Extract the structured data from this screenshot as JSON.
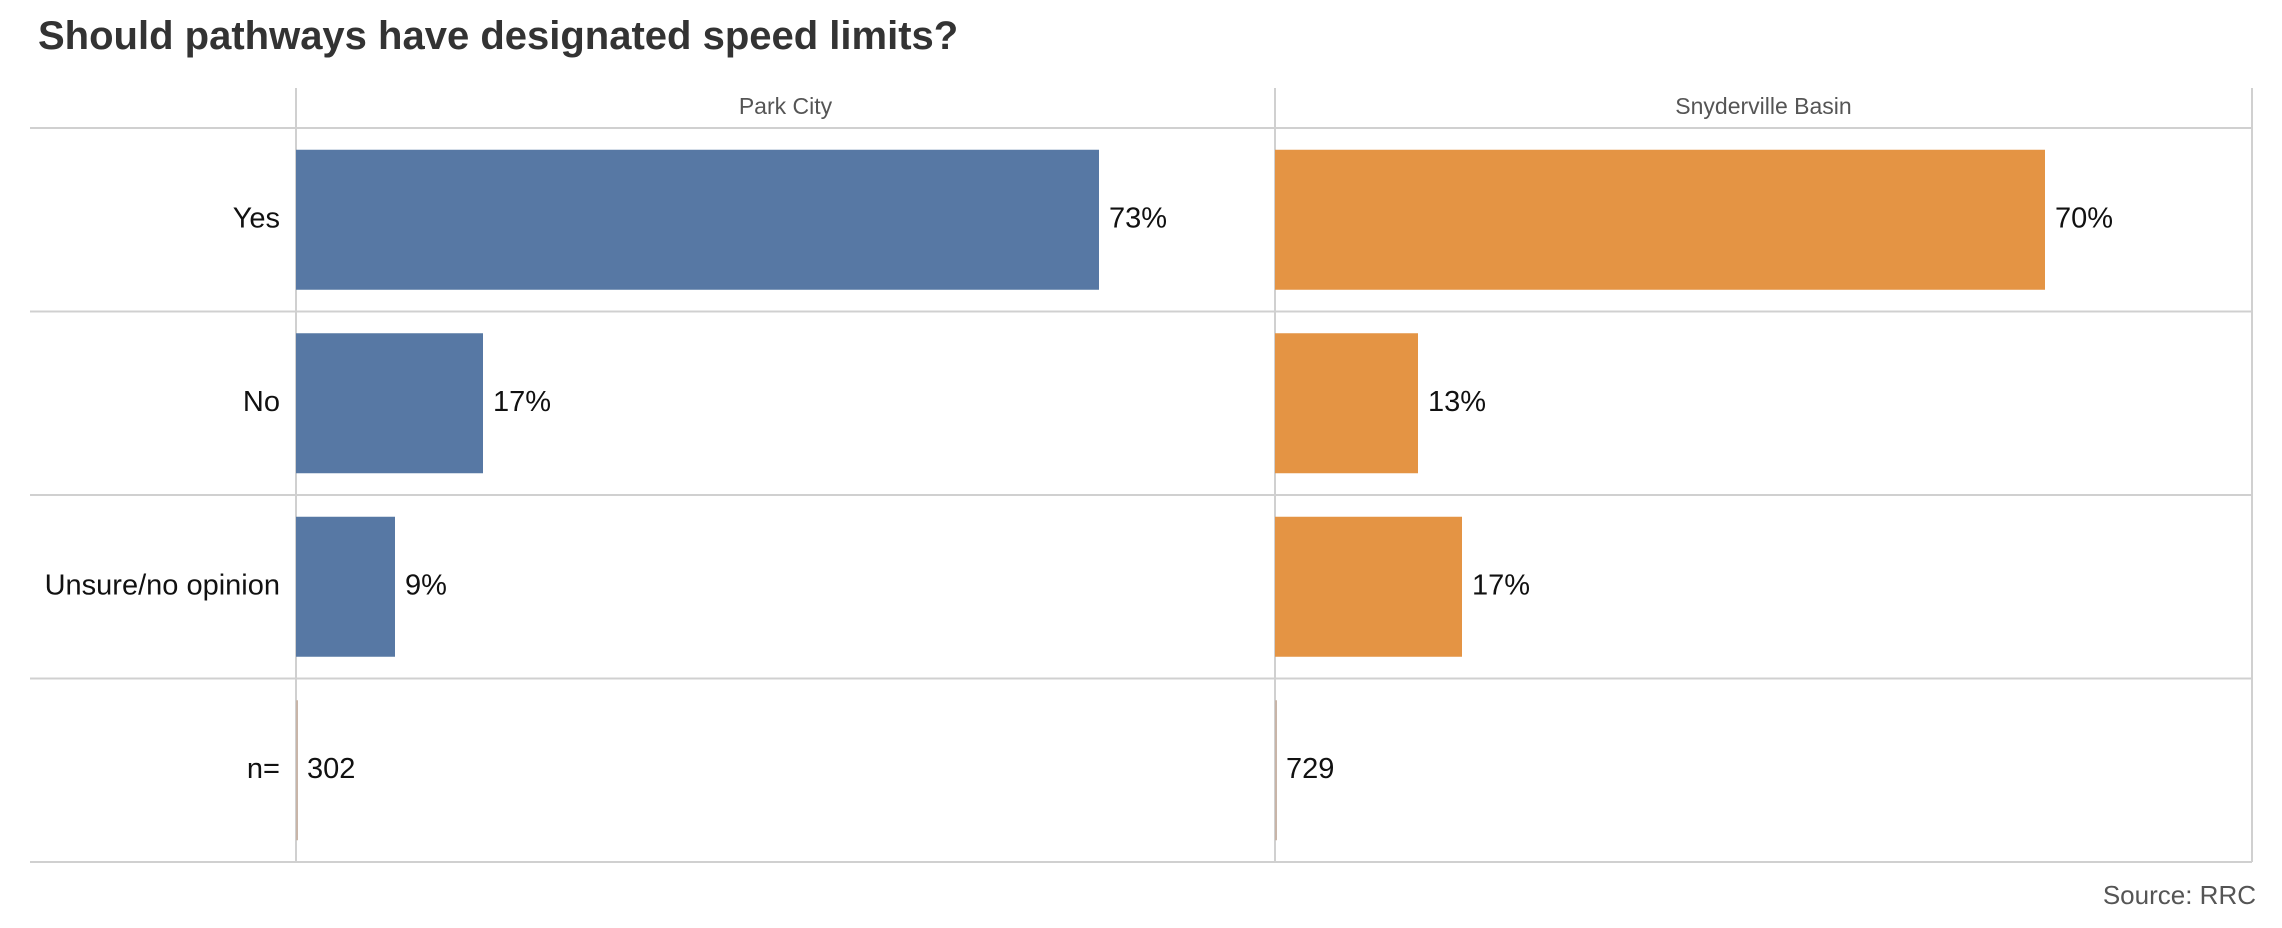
{
  "title": "Should pathways have designated speed limits?",
  "source": "Source: RRC",
  "chart_data": {
    "type": "bar",
    "orientation": "horizontal",
    "title": "Should pathways have designated speed limits?",
    "categories": [
      "Yes",
      "No",
      "Unsure/no opinion"
    ],
    "value_format": "percent",
    "xlim": [
      0,
      100
    ],
    "grid": true,
    "panels": [
      {
        "name": "Park City",
        "color": "#5778a4",
        "values": [
          73,
          17,
          9
        ],
        "value_labels": [
          "73%",
          "17%",
          "9%"
        ],
        "n_label": "302"
      },
      {
        "name": "Snyderville Basin",
        "color": "#e49444",
        "values": [
          70,
          13,
          17
        ],
        "value_labels": [
          "70%",
          "13%",
          "17%"
        ],
        "n_label": "729"
      }
    ],
    "n_row_label": "n="
  }
}
